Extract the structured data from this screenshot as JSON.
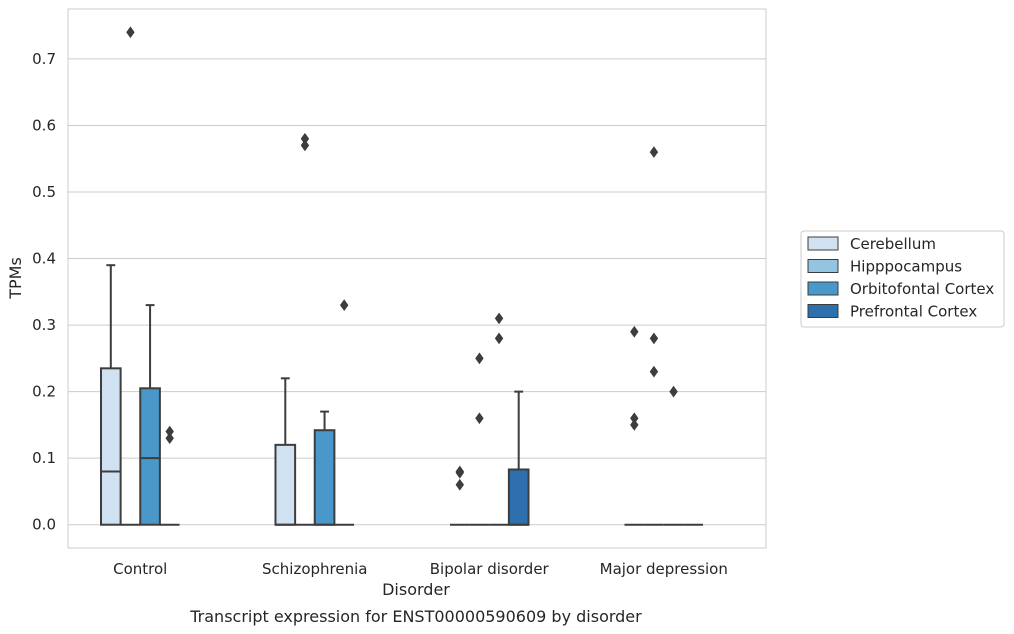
{
  "colors": {
    "grid": "#cccccc",
    "frame": "#cccccc",
    "box_edge": "#3d3d3d",
    "text": "#262626",
    "background": "#ffffff"
  },
  "chart_data": {
    "type": "box",
    "title": "",
    "caption": "Transcript expression for ENST00000590609 by disorder",
    "xlabel": "Disorder",
    "ylabel": "TPMs",
    "ylim": [
      -0.035,
      0.775
    ],
    "yticks": [
      "0.0",
      "0.1",
      "0.2",
      "0.3",
      "0.4",
      "0.5",
      "0.6",
      "0.7"
    ],
    "grid": "horizontal",
    "legend_position": "right, outside plot",
    "categories": [
      "Control",
      "Schizophrenia",
      "Bipolar disorder",
      "Major depression"
    ],
    "series": [
      {
        "name": "Cerebellum",
        "color": "#d0e1f2",
        "boxes": [
          {
            "q1": 0,
            "median": 0.08,
            "q3": 0.235,
            "whislo": 0,
            "whishi": 0.39,
            "fliers": []
          },
          {
            "q1": 0,
            "median": 0,
            "q3": 0.12,
            "whislo": 0,
            "whishi": 0.22,
            "fliers": []
          },
          {
            "q1": 0,
            "median": 0,
            "q3": 0,
            "whislo": 0,
            "whishi": 0,
            "fliers": [
              0.08,
              0.078,
              0.06
            ]
          },
          {
            "q1": 0,
            "median": 0,
            "q3": 0,
            "whislo": 0,
            "whishi": 0,
            "fliers": [
              0.29,
              0.16,
              0.15
            ]
          }
        ]
      },
      {
        "name": "Hipppocampus",
        "color": "#94c4df",
        "boxes": [
          {
            "q1": 0,
            "median": 0,
            "q3": 0,
            "whislo": 0,
            "whishi": 0,
            "fliers": [
              0.74
            ]
          },
          {
            "q1": 0,
            "median": 0,
            "q3": 0,
            "whislo": 0,
            "whishi": 0,
            "fliers": [
              0.58,
              0.57
            ]
          },
          {
            "q1": 0,
            "median": 0,
            "q3": 0,
            "whislo": 0,
            "whishi": 0,
            "fliers": [
              0.25,
              0.16
            ]
          },
          {
            "q1": 0,
            "median": 0,
            "q3": 0,
            "whislo": 0,
            "whishi": 0,
            "fliers": [
              0.56,
              0.28,
              0.23
            ]
          }
        ]
      },
      {
        "name": "Orbitofontal Cortex",
        "color": "#4a98c9",
        "boxes": [
          {
            "q1": 0,
            "median": 0.1,
            "q3": 0.205,
            "whislo": 0,
            "whishi": 0.33,
            "fliers": []
          },
          {
            "q1": 0,
            "median": 0,
            "q3": 0.142,
            "whislo": 0,
            "whishi": 0.17,
            "fliers": []
          },
          {
            "q1": 0,
            "median": 0,
            "q3": 0,
            "whislo": 0,
            "whishi": 0,
            "fliers": [
              0.31,
              0.28
            ]
          },
          {
            "q1": 0,
            "median": 0,
            "q3": 0,
            "whislo": 0,
            "whishi": 0,
            "fliers": [
              0.2
            ]
          }
        ]
      },
      {
        "name": "Prefrontal Cortex",
        "color": "#2e6fae",
        "boxes": [
          {
            "q1": 0,
            "median": 0,
            "q3": 0,
            "whislo": 0,
            "whishi": 0,
            "fliers": [
              0.14,
              0.13
            ]
          },
          {
            "q1": 0,
            "median": 0,
            "q3": 0,
            "whislo": 0,
            "whishi": 0,
            "fliers": [
              0.33
            ]
          },
          {
            "q1": 0,
            "median": 0,
            "q3": 0.083,
            "whislo": 0,
            "whishi": 0.2,
            "fliers": []
          },
          {
            "q1": 0,
            "median": 0,
            "q3": 0,
            "whislo": 0,
            "whishi": 0,
            "fliers": []
          }
        ]
      }
    ]
  }
}
